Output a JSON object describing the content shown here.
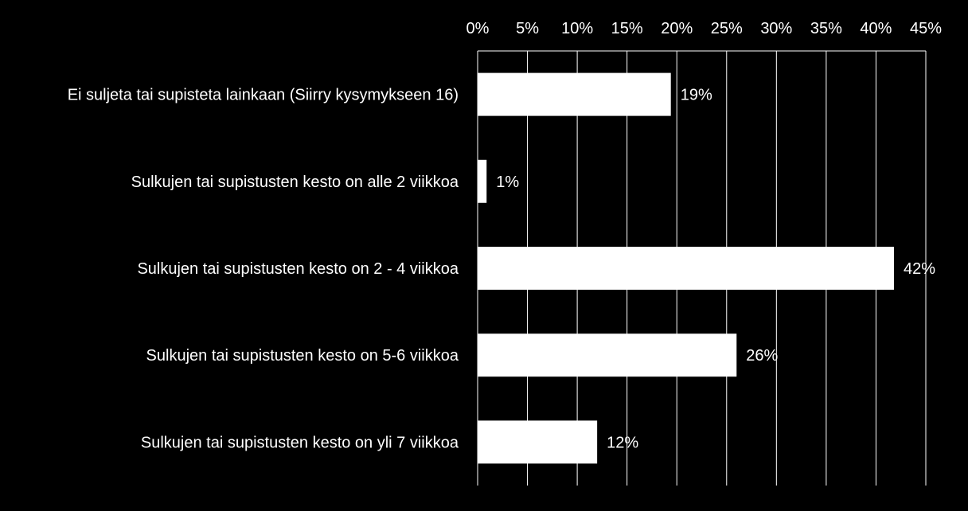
{
  "chart_data": {
    "type": "bar",
    "orientation": "horizontal",
    "title": "",
    "xlabel": "",
    "ylabel": "",
    "xlim": [
      0,
      45
    ],
    "tick_step": 5,
    "tick_labels": [
      "0%",
      "5%",
      "10%",
      "15%",
      "20%",
      "25%",
      "30%",
      "35%",
      "40%",
      "45%"
    ],
    "axis_position": "top",
    "grid": true,
    "legend": "none",
    "categories": [
      "Ei suljeta tai supisteta lainkaan (Siirry kysymykseen 16)",
      "Sulkujen tai supistusten kesto on alle 2 viikkoa",
      "Sulkujen tai supistusten kesto on 2 - 4 viikkoa",
      "Sulkujen tai supistusten kesto on 5-6 viikkoa",
      "Sulkujen tai supistusten kesto on yli 7 viikkoa"
    ],
    "values": [
      19.4,
      0.9,
      41.8,
      26.0,
      12.0
    ],
    "data_labels": [
      "19%",
      "1%",
      "42%",
      "26%",
      "12%"
    ],
    "colors": {
      "background": "#000000",
      "bar": "#ffffff",
      "grid": "#ffffff",
      "text": "#ffffff"
    }
  }
}
